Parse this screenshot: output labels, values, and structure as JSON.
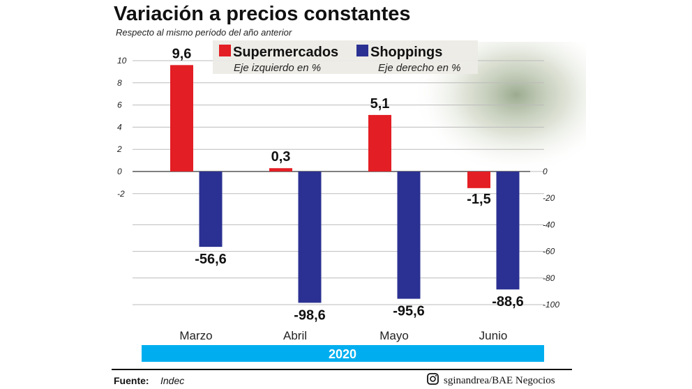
{
  "chart_data": {
    "type": "bar",
    "title": "Variación a precios constantes",
    "subtitle": "Respecto al mismo período del año anterior",
    "categories": [
      "Marzo",
      "Abril",
      "Mayo",
      "Junio"
    ],
    "group_label": "2020",
    "series": [
      {
        "name": "Supermercados",
        "axis_note": "Eje izquierdo en %",
        "color": "#e31e24",
        "axis": "left",
        "values": [
          9.6,
          0.3,
          5.1,
          -1.5
        ],
        "labels": [
          "9,6",
          "0,3",
          "5,1",
          "-1,5"
        ]
      },
      {
        "name": "Shoppings",
        "axis_note": "Eje derecho en %",
        "color": "#2b3192",
        "axis": "right",
        "values": [
          -56.6,
          -98.6,
          -95.6,
          -88.6
        ],
        "labels": [
          "-56,6",
          "-98,6",
          "-95,6",
          "-88,6"
        ]
      }
    ],
    "left_axis": {
      "ticks": [
        "10",
        "8",
        "6",
        "4",
        "2",
        "0",
        "-2"
      ],
      "values": [
        10,
        8,
        6,
        4,
        2,
        0,
        -2
      ]
    },
    "right_axis": {
      "ticks": [
        "0",
        "-20",
        "-40",
        "-60",
        "-80",
        "-100"
      ],
      "values": [
        0,
        -20,
        -40,
        -60,
        -80,
        -100
      ]
    },
    "grid": true,
    "legend_position": "top"
  },
  "footer": {
    "source_label": "Fuente:",
    "source": "Indec",
    "credit": "sginandrea/BAE Negocios",
    "credit_icon": "instagram-icon"
  },
  "colors": {
    "band": "#00aeef"
  }
}
